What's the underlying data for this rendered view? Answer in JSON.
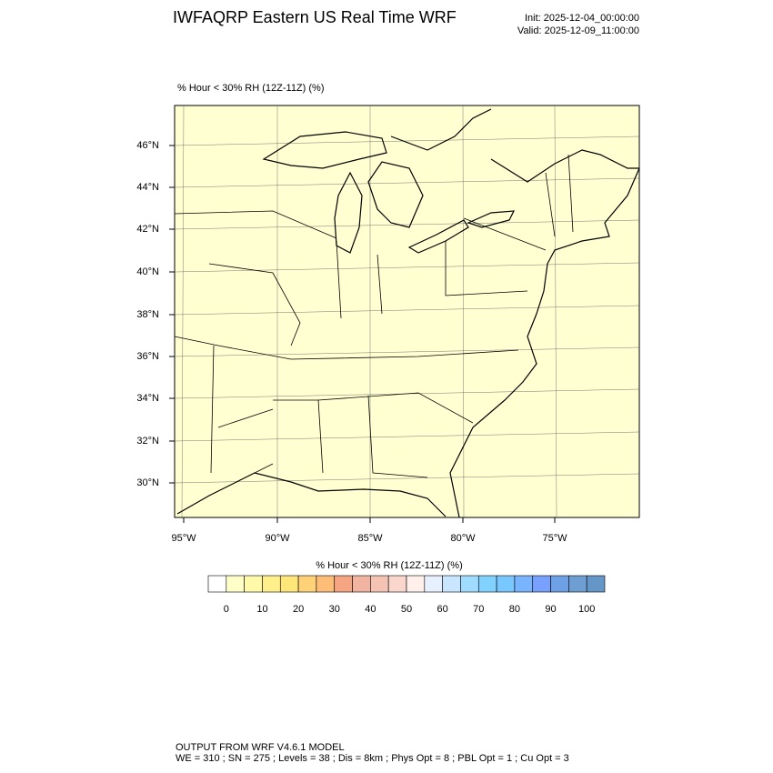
{
  "header": {
    "title": "IWFAQRP Eastern US Real Time WRF",
    "init": "Init: 2025-12-04_00:00:00",
    "valid": "Valid: 2025-12-09_11:00:00"
  },
  "map": {
    "subtitle": "% Hour < 30% RH (12Z-11Z)   (%)",
    "lat_labels": [
      "46°N",
      "44°N",
      "42°N",
      "40°N",
      "38°N",
      "36°N",
      "34°N",
      "32°N",
      "30°N"
    ],
    "lon_labels": [
      "95°W",
      "90°W",
      "85°W",
      "80°W",
      "75°W"
    ]
  },
  "colorbar": {
    "title": "% Hour < 30% RH (12Z-11Z)  (%)",
    "colors": [
      "#ffffff",
      "#ffffc8",
      "#fffaaa",
      "#fff08c",
      "#ffe678",
      "#ffd278",
      "#ffbe78",
      "#f5a582",
      "#f0b4a0",
      "#f5c3b4",
      "#fad7cd",
      "#fff0eb",
      "#e6f0ff",
      "#c8e6ff",
      "#a0dcff",
      "#82d2ff",
      "#78c8ff",
      "#78b4ff",
      "#78a0ff",
      "#6ea0e6",
      "#6e9ed2",
      "#6496c8"
    ],
    "labels": [
      "0",
      "10",
      "20",
      "30",
      "40",
      "50",
      "60",
      "70",
      "80",
      "90",
      "100"
    ]
  },
  "footer": {
    "line1": "OUTPUT FROM WRF V4.6.1 MODEL",
    "line2": "WE = 310 ; SN = 275 ; Levels = 38 ; Dis = 8km ; Phys Opt = 8 ; PBL Opt = 1 ; Cu Opt = 3"
  }
}
